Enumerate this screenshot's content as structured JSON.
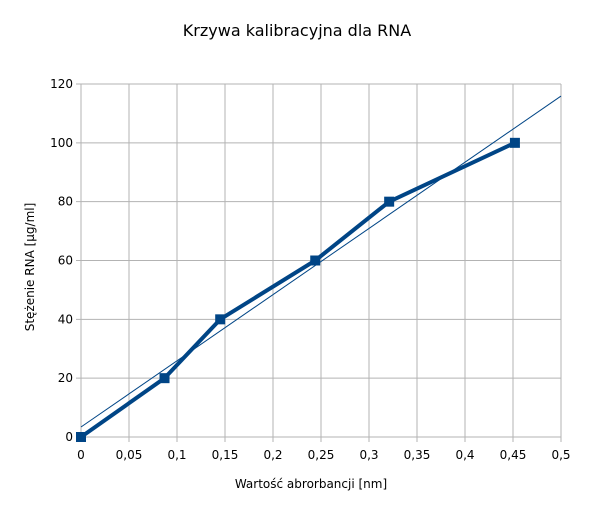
{
  "chart_data": {
    "type": "line",
    "title": "Krzywa kalibracyjna dla RNA",
    "xlabel": "Wartość abrorbancji [nm]",
    "ylabel": "Stężenie RNA [µg/ml]",
    "xlim": [
      0,
      0.5
    ],
    "ylim": [
      0,
      120
    ],
    "x_ticks": [
      "0",
      "0,05",
      "0,1",
      "0,15",
      "0,2",
      "0,25",
      "0,3",
      "0,35",
      "0,4",
      "0,45",
      "0,5"
    ],
    "y_ticks": [
      "0",
      "20",
      "40",
      "60",
      "80",
      "100",
      "120"
    ],
    "grid": true,
    "legend": "none",
    "colors": {
      "series": "#004586",
      "trend": "#004586",
      "grid": "#b3b3b3"
    },
    "series": [
      {
        "points": [
          {
            "x": 0,
            "y": 0
          },
          {
            "x": 0.087,
            "y": 20
          },
          {
            "x": 0.145,
            "y": 40
          },
          {
            "x": 0.244,
            "y": 60
          },
          {
            "x": 0.321,
            "y": 80
          },
          {
            "x": 0.452,
            "y": 100
          }
        ]
      }
    ],
    "trendline": {
      "type": "linear",
      "slope": 225,
      "intercept": 3.4
    }
  }
}
